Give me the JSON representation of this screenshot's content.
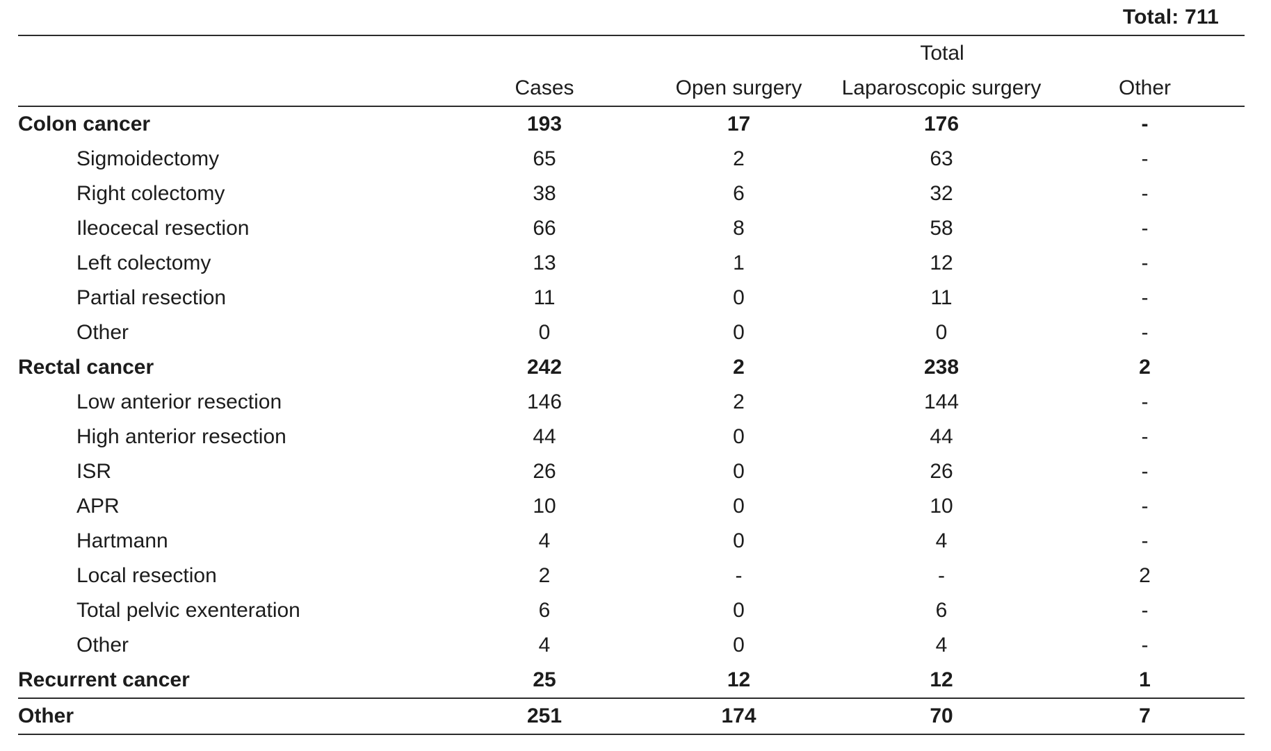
{
  "header": {
    "grand_total": "Total: 711"
  },
  "table": {
    "group_header": "Total",
    "columns": [
      "Cases",
      "Open surgery",
      "Laparoscopic surgery",
      "Other"
    ],
    "rows": [
      {
        "label": "Colon cancer",
        "bold": true,
        "indent": false,
        "top_border": false,
        "values": [
          "193",
          "17",
          "176",
          "-"
        ]
      },
      {
        "label": "Sigmoidectomy",
        "bold": false,
        "indent": true,
        "top_border": false,
        "values": [
          "65",
          "2",
          "63",
          "-"
        ]
      },
      {
        "label": "Right colectomy",
        "bold": false,
        "indent": true,
        "top_border": false,
        "values": [
          "38",
          "6",
          "32",
          "-"
        ]
      },
      {
        "label": "Ileocecal resection",
        "bold": false,
        "indent": true,
        "top_border": false,
        "values": [
          "66",
          "8",
          "58",
          "-"
        ]
      },
      {
        "label": "Left colectomy",
        "bold": false,
        "indent": true,
        "top_border": false,
        "values": [
          "13",
          "1",
          "12",
          "-"
        ]
      },
      {
        "label": "Partial resection",
        "bold": false,
        "indent": true,
        "top_border": false,
        "values": [
          "11",
          "0",
          "11",
          "-"
        ]
      },
      {
        "label": "Other",
        "bold": false,
        "indent": true,
        "top_border": false,
        "values": [
          "0",
          "0",
          "0",
          "-"
        ]
      },
      {
        "label": "Rectal cancer",
        "bold": true,
        "indent": false,
        "top_border": false,
        "values": [
          "242",
          "2",
          "238",
          "2"
        ]
      },
      {
        "label": "Low anterior resection",
        "bold": false,
        "indent": true,
        "top_border": false,
        "values": [
          "146",
          "2",
          "144",
          "-"
        ]
      },
      {
        "label": "High anterior resection",
        "bold": false,
        "indent": true,
        "top_border": false,
        "values": [
          "44",
          "0",
          "44",
          "-"
        ]
      },
      {
        "label": "ISR",
        "bold": false,
        "indent": true,
        "top_border": false,
        "values": [
          "26",
          "0",
          "26",
          "-"
        ]
      },
      {
        "label": "APR",
        "bold": false,
        "indent": true,
        "top_border": false,
        "values": [
          "10",
          "0",
          "10",
          "-"
        ]
      },
      {
        "label": "Hartmann",
        "bold": false,
        "indent": true,
        "top_border": false,
        "values": [
          "4",
          "0",
          "4",
          "-"
        ]
      },
      {
        "label": "Local resection",
        "bold": false,
        "indent": true,
        "top_border": false,
        "values": [
          "2",
          "-",
          "-",
          "2"
        ]
      },
      {
        "label": "Total pelvic exenteration",
        "bold": false,
        "indent": true,
        "top_border": false,
        "values": [
          "6",
          "0",
          "6",
          "-"
        ]
      },
      {
        "label": "Other",
        "bold": false,
        "indent": true,
        "top_border": false,
        "values": [
          "4",
          "0",
          "4",
          "-"
        ]
      },
      {
        "label": "Recurrent cancer",
        "bold": true,
        "indent": false,
        "top_border": false,
        "values": [
          "25",
          "12",
          "12",
          "1"
        ]
      },
      {
        "label": "Other",
        "bold": true,
        "indent": false,
        "top_border": true,
        "values": [
          "251",
          "174",
          "70",
          "7"
        ]
      }
    ]
  },
  "colors": {
    "text": "#1c1c1c",
    "rule": "#2b2b2b",
    "background": "#ffffff"
  }
}
